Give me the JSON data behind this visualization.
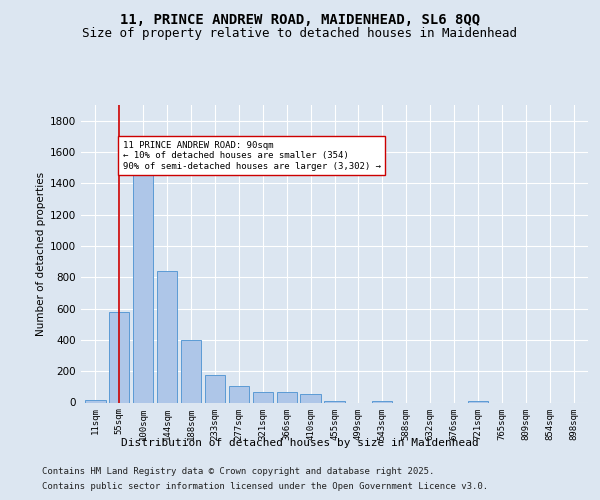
{
  "title_line1": "11, PRINCE ANDREW ROAD, MAIDENHEAD, SL6 8QQ",
  "title_line2": "Size of property relative to detached houses in Maidenhead",
  "xlabel": "Distribution of detached houses by size in Maidenhead",
  "ylabel": "Number of detached properties",
  "categories": [
    "11sqm",
    "55sqm",
    "100sqm",
    "144sqm",
    "188sqm",
    "233sqm",
    "277sqm",
    "321sqm",
    "366sqm",
    "410sqm",
    "455sqm",
    "499sqm",
    "543sqm",
    "588sqm",
    "632sqm",
    "676sqm",
    "721sqm",
    "765sqm",
    "809sqm",
    "854sqm",
    "898sqm"
  ],
  "values": [
    18,
    580,
    1490,
    840,
    400,
    175,
    105,
    70,
    65,
    55,
    10,
    0,
    10,
    0,
    0,
    0,
    10,
    0,
    0,
    0,
    0
  ],
  "bar_color": "#aec6e8",
  "bar_edge_color": "#5b9bd5",
  "vline_x": 1,
  "vline_color": "#cc0000",
  "annotation_text": "11 PRINCE ANDREW ROAD: 90sqm\n← 10% of detached houses are smaller (354)\n90% of semi-detached houses are larger (3,302) →",
  "annotation_box_color": "#ffffff",
  "annotation_box_edge": "#cc0000",
  "ylim": [
    0,
    1900
  ],
  "yticks": [
    0,
    200,
    400,
    600,
    800,
    1000,
    1200,
    1400,
    1600,
    1800
  ],
  "bg_color": "#dce6f1",
  "plot_bg_color": "#dce6f1",
  "footer_line1": "Contains HM Land Registry data © Crown copyright and database right 2025.",
  "footer_line2": "Contains public sector information licensed under the Open Government Licence v3.0.",
  "title_fontsize": 10,
  "subtitle_fontsize": 9,
  "footer_fontsize": 6.5,
  "ylabel_fontsize": 7.5,
  "xlabel_fontsize": 8,
  "tick_fontsize": 6.5,
  "ytick_fontsize": 7.5,
  "annot_fontsize": 6.5
}
